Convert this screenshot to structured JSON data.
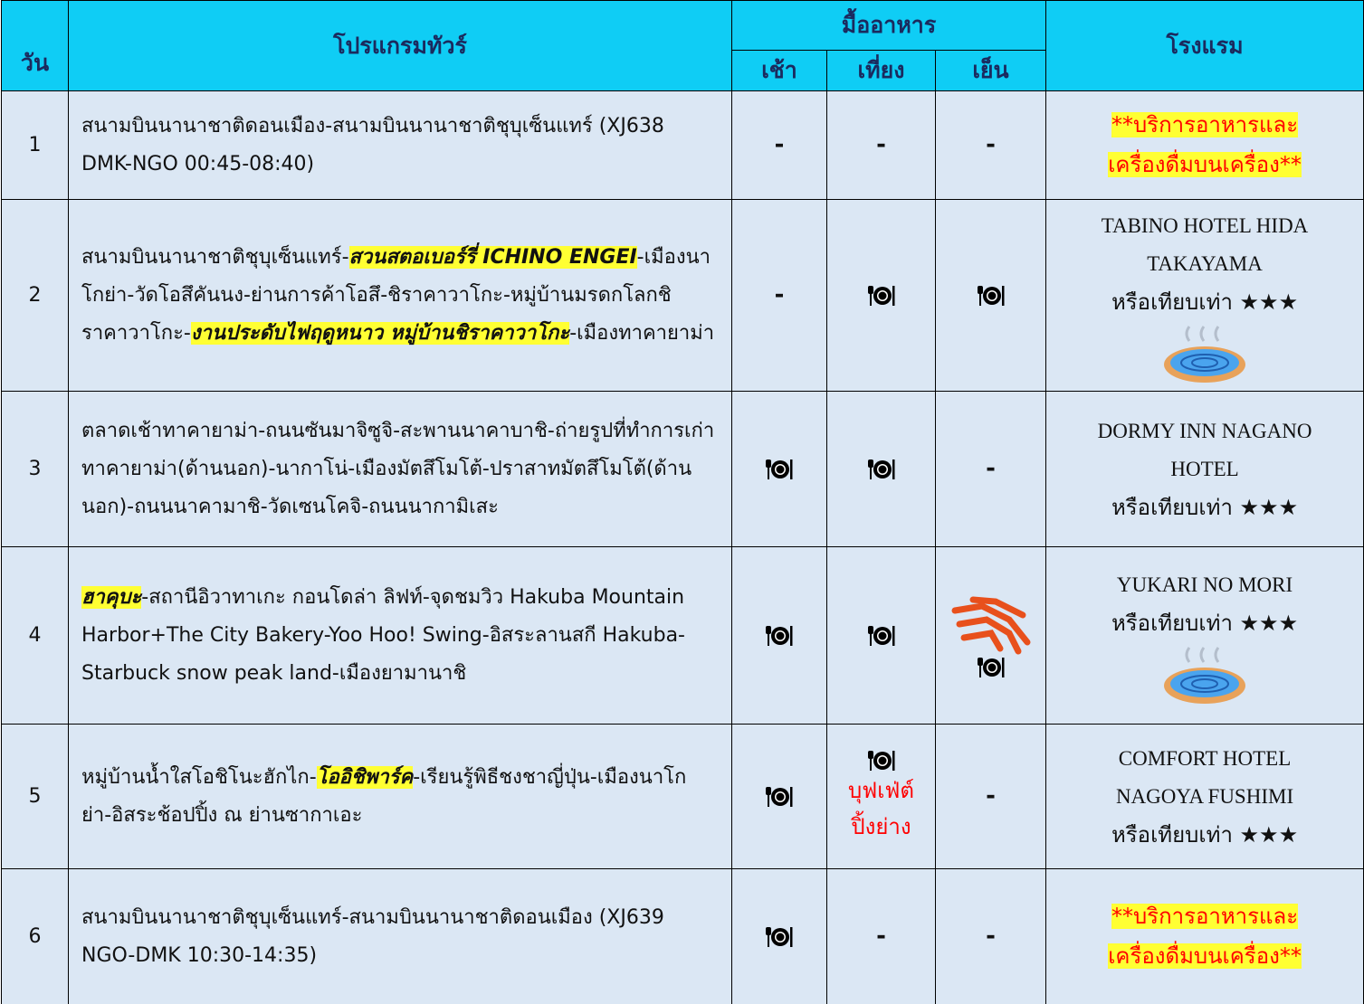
{
  "header": {
    "day": "วัน",
    "program": "โปรแกรมทัวร์",
    "meals": "มื้ออาหาร",
    "breakfast": "เช้า",
    "lunch": "เที่ยง",
    "dinner": "เย็น",
    "hotel": "โรงแรม"
  },
  "rows": [
    {
      "day": "1",
      "program": [
        "สนามบินนานาชาติดอนเมือง-สนามบินนานาชาติชุบุเซ็นแทร์ (XJ638 DMK-NGO 00:45-08:40)"
      ],
      "meals": [
        "-",
        "-",
        "-"
      ],
      "hotel_note": [
        "**บริการอาหารและ",
        "เครื่องดื่มบนเครื่อง**"
      ]
    },
    {
      "day": "2",
      "program": [
        "สนามบินนานาชาติชุบุเซ็นแทร์-",
        {
          "text": "สวนสตอเบอร์รี่ ICHINO ENGEI",
          "highlight": true
        },
        "-เมืองนาโกย่า-วัดโอสึคันนง-ย่านการค้าโอสึ-ชิราคาวาโกะ-หมู่บ้านมรดกโลกชิราคาวาโกะ-",
        {
          "text": "งานประดับไฟฤดูหนาว หมู่บ้านชิราคาวาโกะ",
          "highlight": true
        },
        "-เมืองทาคายาม่า"
      ],
      "meals": [
        "-",
        null,
        null
      ],
      "hotel": {
        "name": "TABINO HOTEL HIDA TAKAYAMA",
        "note": "หรือเทียบเท่า ★★★"
      }
    },
    {
      "day": "3",
      "program": [
        "ตลาดเช้าทาคายาม่า-ถนนซันมาจิซูจิ-สะพานนาคาบาชิ-ถ่ายรูปที่ทำการเก่าทาคายาม่า(ด้านนอก)-นากาโน่-เมืองมัตสึโมโต้-ปราสาทมัตสึโมโต้(ด้านนอก)-ถนนนาคามาชิ-วัดเซนโคจิ-ถนนนากามิเสะ"
      ],
      "meals": [
        null,
        null,
        "-"
      ],
      "hotel": {
        "name": "DORMY INN NAGANO HOTEL",
        "note": "หรือเทียบเท่า ★★★"
      }
    },
    {
      "day": "4",
      "program": [
        {
          "text": "ฮาคุบะ",
          "highlight": true
        },
        "-สถานีอิวาทาเกะ กอนโดล่า ลิฟท์-จุดชมวิว Hakuba Mountain Harbor+The City Bakery-Yoo Hoo! Swing-อิสระลานสกี Hakuba-Starbuck snow peak land-เมืองยามานาชิ"
      ],
      "meals": [
        null,
        null,
        null
      ],
      "hotel": {
        "name": "YUKARI NO MORI",
        "note": "หรือเทียบเท่า ★★★"
      }
    },
    {
      "day": "5",
      "program": [
        "หมู่บ้านน้ำใสโอชิโนะฮักไก-",
        {
          "text": "โออิชิพาร์ค",
          "highlight": true
        },
        "-เรียนรู้พิธีชงชาญี่ปุ่น-เมืองนาโกย่า-อิสระช้อปปิ้ง ณ ย่านซากาเอะ"
      ],
      "meals": [
        null,
        null,
        "-"
      ],
      "lunch_note": [
        "บุฟเฟ่ต์",
        "ปิ้งย่าง"
      ],
      "hotel": {
        "name": "COMFORT HOTEL NAGOYA FUSHIMI",
        "note": "หรือเทียบเท่า ★★★"
      }
    },
    {
      "day": "6",
      "program": [
        "สนามบินนานาชาติชุบุเซ็นแทร์-สนามบินนานาชาติดอนเมือง (XJ639 NGO-DMK 10:30-14:35)"
      ],
      "meals": [
        null,
        "-",
        "-"
      ],
      "hotel_note": [
        "**บริการอาหารและ",
        "เครื่องดื่มบนเครื่อง**"
      ]
    }
  ]
}
